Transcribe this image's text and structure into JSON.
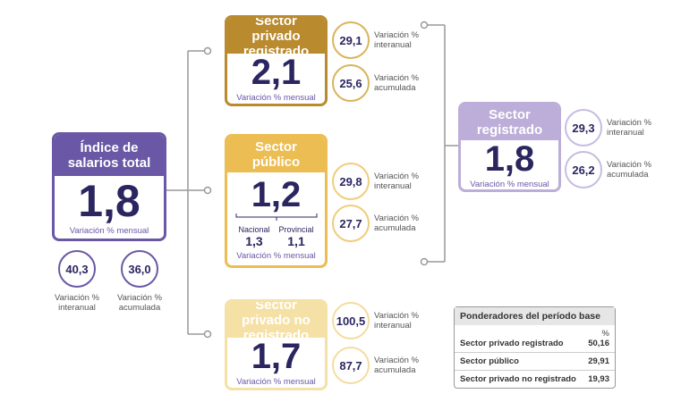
{
  "total": {
    "title": "Índice de salarios total",
    "value": "1,8",
    "caption": "Variación % mensual",
    "stats": [
      {
        "value": "40,3",
        "label": "Variación % interanual"
      },
      {
        "value": "36,0",
        "label": "Variación % acumulada"
      }
    ]
  },
  "sectors": [
    {
      "title": "Sector privado registrado",
      "value": "2,1",
      "caption": "Variación % mensual",
      "stats": [
        {
          "value": "29,1",
          "label": "Variación % interanual"
        },
        {
          "value": "25,6",
          "label": "Variación % acumulada"
        }
      ]
    },
    {
      "title": "Sector público",
      "value": "1,2",
      "caption": "Variación % mensual",
      "breakdown": [
        {
          "label": "Nacional",
          "value": "1,3"
        },
        {
          "label": "Provincial",
          "value": "1,1"
        }
      ],
      "stats": [
        {
          "value": "29,8",
          "label": "Variación % interanual"
        },
        {
          "value": "27,7",
          "label": "Variación % acumulada"
        }
      ]
    },
    {
      "title": "Sector privado no registrado",
      "value": "1,7",
      "caption": "Variación % mensual",
      "stats": [
        {
          "value": "100,5",
          "label": "Variación % interanual"
        },
        {
          "value": "87,7",
          "label": "Variación % acumulada"
        }
      ]
    }
  ],
  "registered": {
    "title": "Sector registrado",
    "value": "1,8",
    "caption": "Variación % mensual",
    "stats": [
      {
        "value": "29,3",
        "label": "Variación % interanual"
      },
      {
        "value": "26,2",
        "label": "Variación % acumulada"
      }
    ]
  },
  "table": {
    "title": "Ponderadores del período base",
    "header": "%",
    "rows": [
      [
        "Sector privado registrado",
        "50,16"
      ],
      [
        "Sector público",
        "29,91"
      ],
      [
        "Sector privado no registrado",
        "19,93"
      ]
    ]
  }
}
